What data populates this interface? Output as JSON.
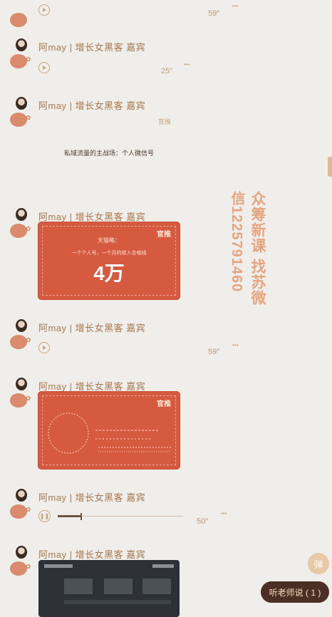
{
  "sender_name": "阿may | 增长女黑客 嘉宾",
  "messages": [
    {
      "type": "voice",
      "duration": "59″"
    },
    {
      "type": "voice",
      "duration": "25″"
    },
    {
      "type": "text_image",
      "caption": "私域流量的主战场：个人微信号"
    },
    {
      "type": "card",
      "heading": "天猫略：",
      "subtitle": "一个个人号，一个月的收入合格线",
      "big": "4万"
    },
    {
      "type": "voice",
      "duration": "59″"
    },
    {
      "type": "card_diagram"
    },
    {
      "type": "voice_playing",
      "duration": "50″",
      "progress": 0.18
    },
    {
      "type": "image_dark"
    }
  ],
  "logo_text": "官推",
  "watermark": {
    "line1": "众筹新课 找苏微",
    "line2": "信1225791460"
  },
  "fab_label": "弹",
  "pill_label": "听老师说 ( 1 )",
  "colors": {
    "accent": "#d65a3f",
    "text": "#a8784e",
    "bg": "#efeeeb"
  }
}
